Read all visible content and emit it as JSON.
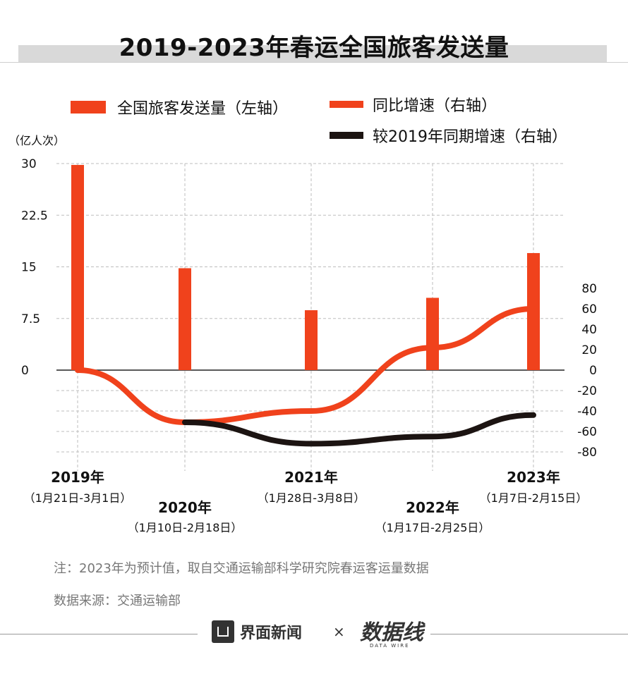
{
  "title": "2019-2023年春运全国旅客发送量",
  "unit": "（亿人次）",
  "legend": [
    {
      "label": "全国旅客发送量（左轴）",
      "color": "#f0421c"
    },
    {
      "label": "同比增速（右轴）",
      "color": "#f0421c"
    },
    {
      "label": "较2019年同期增速（右轴）",
      "color": "#1c1412"
    }
  ],
  "chart_data": {
    "type": "bar",
    "categories": [
      "2019年",
      "2020年",
      "2021年",
      "2022年",
      "2023年"
    ],
    "category_subtitles": [
      "（1月21日-3月1日）",
      "（1月10日-2月18日）",
      "（1月28日-3月8日）",
      "（1月17日-2月25日）",
      "（1月7日-2月15日）"
    ],
    "left_axis": {
      "ticks": [
        "0",
        "7.5",
        "15",
        "22.5",
        "30"
      ],
      "range": [
        0,
        30
      ]
    },
    "right_axis": {
      "ticks": [
        "-80",
        "-60",
        "-40",
        "-20",
        "0",
        "20",
        "40",
        "60",
        "80"
      ],
      "range": [
        -80,
        80
      ]
    },
    "series": [
      {
        "name": "全国旅客发送量（左轴）",
        "type": "bar",
        "axis": "left",
        "color": "#f0421c",
        "values": [
          29.8,
          14.8,
          8.7,
          10.5,
          17.0
        ]
      },
      {
        "name": "同比增速（右轴）",
        "type": "line",
        "axis": "right",
        "color": "#f0421c",
        "values": [
          0,
          -51,
          -40,
          22,
          60
        ]
      },
      {
        "name": "较2019年同期增速（右轴）",
        "type": "line",
        "axis": "right",
        "color": "#1c1412",
        "values": [
          null,
          -51,
          -72,
          -65,
          -44
        ]
      }
    ]
  },
  "notes": {
    "note1": "注：2023年为预计值，取自交通运输部科学研究院春运客运量数据",
    "note2": "数据来源：交通运输部"
  },
  "footer": {
    "brand": "界面新闻",
    "times": "×",
    "logo": "数据线",
    "logo_sub": "DATA WIRE"
  }
}
